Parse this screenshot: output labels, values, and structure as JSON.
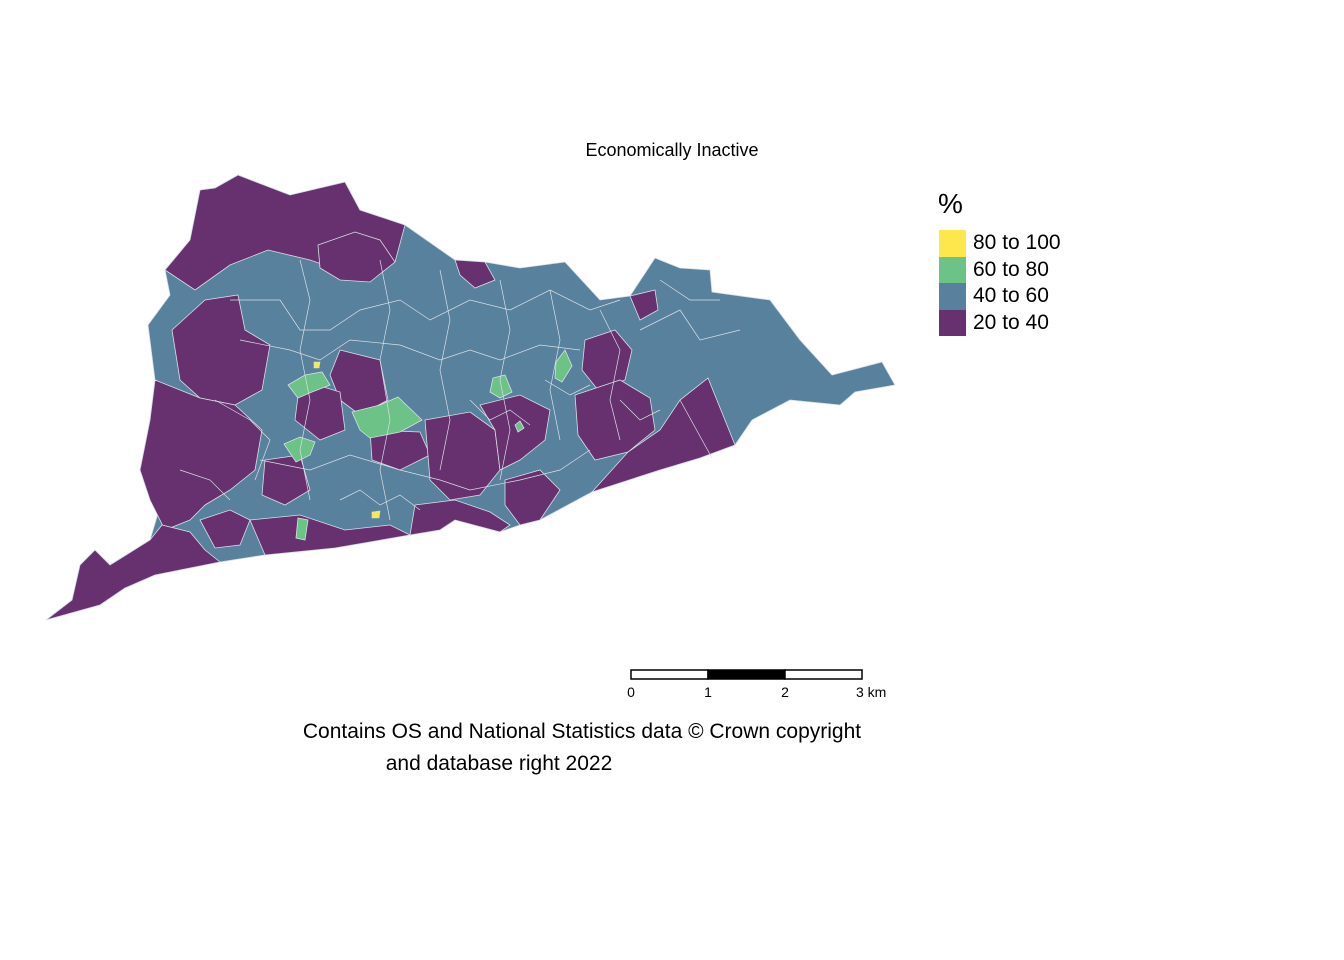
{
  "title": "Economically Inactive",
  "legend": {
    "title": "%",
    "items": [
      {
        "label": "80 to 100",
        "color": "#FDE74C"
      },
      {
        "label": "60 to 80",
        "color": "#6CC287"
      },
      {
        "label": "40 to 60",
        "color": "#58819E"
      },
      {
        "label": "20 to 40",
        "color": "#673170"
      }
    ]
  },
  "scalebar": {
    "ticks": [
      "0",
      "1",
      "2",
      "3 km"
    ]
  },
  "credits": {
    "line1": "Contains OS and National Statistics data © Crown copyright",
    "line2": "and database right 2022"
  },
  "colors": {
    "boundary": "#d9dfe6"
  }
}
